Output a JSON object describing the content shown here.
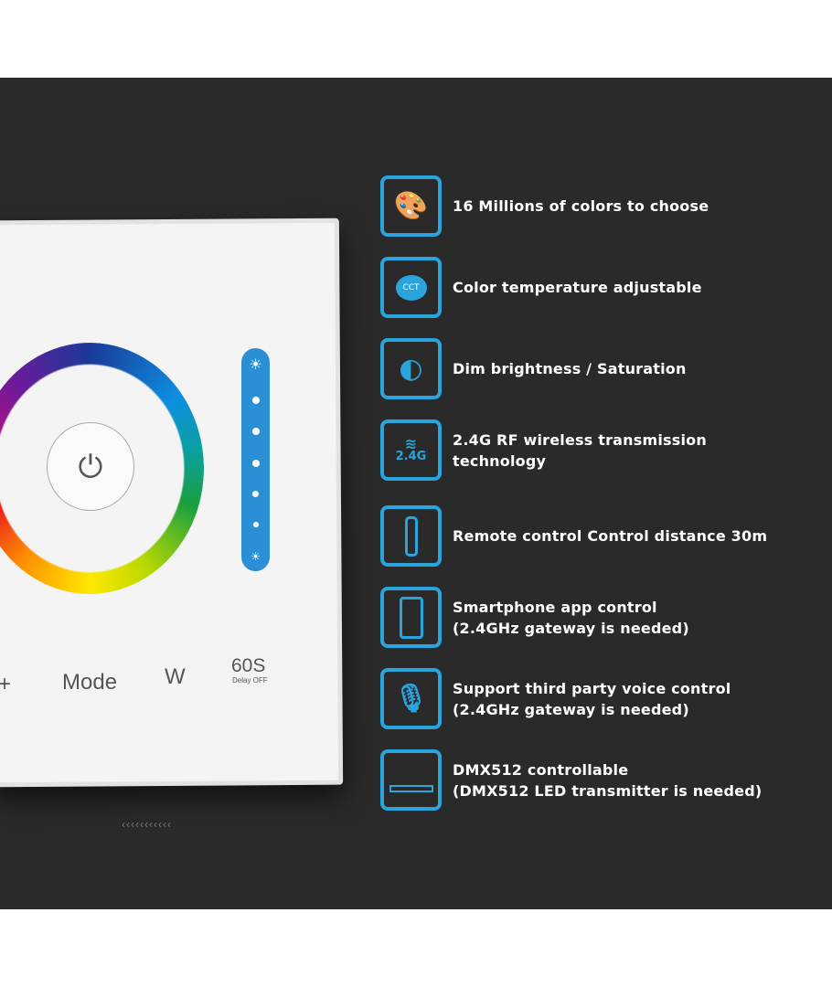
{
  "accent_color": "#2aa4dc",
  "panel": {
    "buttons": {
      "plus": "+",
      "mode": "Mode",
      "w": "W",
      "delay": "60S",
      "delay_sub": "Delay OFF"
    },
    "power_icon": "power-icon",
    "slider_levels": 6
  },
  "carousel_indicator": "‹‹‹‹‹‹‹‹‹‹‹",
  "features": [
    {
      "icon": "palette-icon",
      "lines": [
        "16 Millions of colors to choose"
      ]
    },
    {
      "icon": "cct-icon",
      "icon_text": "CCT",
      "lines": [
        "Color temperature adjustable"
      ]
    },
    {
      "icon": "brightness-icon",
      "lines": [
        "Dim brightness / Saturation"
      ]
    },
    {
      "icon": "wifi-icon",
      "icon_text": "2.4G",
      "lines": [
        "2.4G RF wireless transmission",
        "technology"
      ]
    },
    {
      "icon": "remote-icon",
      "lines": [
        "Remote control Control distance 30m"
      ]
    },
    {
      "icon": "smartphone-icon",
      "lines": [
        "Smartphone app control",
        "(2.4GHz gateway is needed)"
      ]
    },
    {
      "icon": "microphone-icon",
      "lines": [
        "Support third party voice control",
        "(2.4GHz gateway is needed)"
      ]
    },
    {
      "icon": "dmx-transmitter-icon",
      "lines": [
        "DMX512 controllable",
        "(DMX512 LED transmitter is needed)"
      ]
    }
  ]
}
